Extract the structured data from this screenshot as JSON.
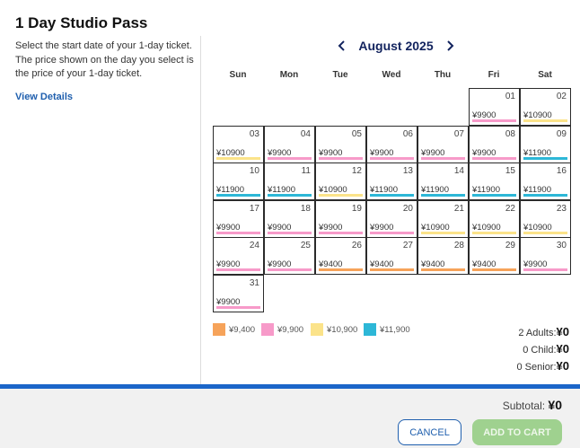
{
  "header": {
    "title": "1 Day Studio Pass",
    "description": "Select the start date of your 1-day ticket. The price shown on the day you select is the price of your 1-day ticket.",
    "view_details": "View Details"
  },
  "calendar": {
    "month_label": "August 2025",
    "weekdays": [
      "Sun",
      "Mon",
      "Tue",
      "Wed",
      "Thu",
      "Fri",
      "Sat"
    ],
    "first_weekday_index": 5,
    "days": [
      {
        "day": "01",
        "price": "¥9900",
        "tier": "9900"
      },
      {
        "day": "02",
        "price": "¥10900",
        "tier": "10900"
      },
      {
        "day": "03",
        "price": "¥10900",
        "tier": "10900"
      },
      {
        "day": "04",
        "price": "¥9900",
        "tier": "9900"
      },
      {
        "day": "05",
        "price": "¥9900",
        "tier": "9900"
      },
      {
        "day": "06",
        "price": "¥9900",
        "tier": "9900"
      },
      {
        "day": "07",
        "price": "¥9900",
        "tier": "9900"
      },
      {
        "day": "08",
        "price": "¥9900",
        "tier": "9900"
      },
      {
        "day": "09",
        "price": "¥11900",
        "tier": "11900"
      },
      {
        "day": "10",
        "price": "¥11900",
        "tier": "11900"
      },
      {
        "day": "11",
        "price": "¥11900",
        "tier": "11900"
      },
      {
        "day": "12",
        "price": "¥10900",
        "tier": "10900"
      },
      {
        "day": "13",
        "price": "¥11900",
        "tier": "11900"
      },
      {
        "day": "14",
        "price": "¥11900",
        "tier": "11900"
      },
      {
        "day": "15",
        "price": "¥11900",
        "tier": "11900"
      },
      {
        "day": "16",
        "price": "¥11900",
        "tier": "11900"
      },
      {
        "day": "17",
        "price": "¥9900",
        "tier": "9900"
      },
      {
        "day": "18",
        "price": "¥9900",
        "tier": "9900"
      },
      {
        "day": "19",
        "price": "¥9900",
        "tier": "9900"
      },
      {
        "day": "20",
        "price": "¥9900",
        "tier": "9900"
      },
      {
        "day": "21",
        "price": "¥10900",
        "tier": "10900"
      },
      {
        "day": "22",
        "price": "¥10900",
        "tier": "10900"
      },
      {
        "day": "23",
        "price": "¥10900",
        "tier": "10900"
      },
      {
        "day": "24",
        "price": "¥9900",
        "tier": "9900"
      },
      {
        "day": "25",
        "price": "¥9900",
        "tier": "9900"
      },
      {
        "day": "26",
        "price": "¥9400",
        "tier": "9400"
      },
      {
        "day": "27",
        "price": "¥9400",
        "tier": "9400"
      },
      {
        "day": "28",
        "price": "¥9400",
        "tier": "9400"
      },
      {
        "day": "29",
        "price": "¥9400",
        "tier": "9400"
      },
      {
        "day": "30",
        "price": "¥9900",
        "tier": "9900"
      },
      {
        "day": "31",
        "price": "¥9900",
        "tier": "9900"
      }
    ]
  },
  "tier_colors": {
    "9400": "#f6a35a",
    "9900": "#f79ac9",
    "10900": "#fbe38a",
    "11900": "#2db7d7"
  },
  "legend": [
    {
      "label": "¥9,400",
      "tier": "9400"
    },
    {
      "label": "¥9,900",
      "tier": "9900"
    },
    {
      "label": "¥10,900",
      "tier": "10900"
    },
    {
      "label": "¥11,900",
      "tier": "11900"
    }
  ],
  "counts": {
    "adults_label": "2 Adults:",
    "adults_value": "¥0",
    "child_label": "0 Child:",
    "child_value": "¥0",
    "senior_label": "0 Senior:",
    "senior_value": "¥0"
  },
  "footer": {
    "subtotal_label": "Subtotal:",
    "subtotal_value": "¥0",
    "cancel_label": "CANCEL",
    "add_to_cart_label": "ADD TO CART"
  }
}
